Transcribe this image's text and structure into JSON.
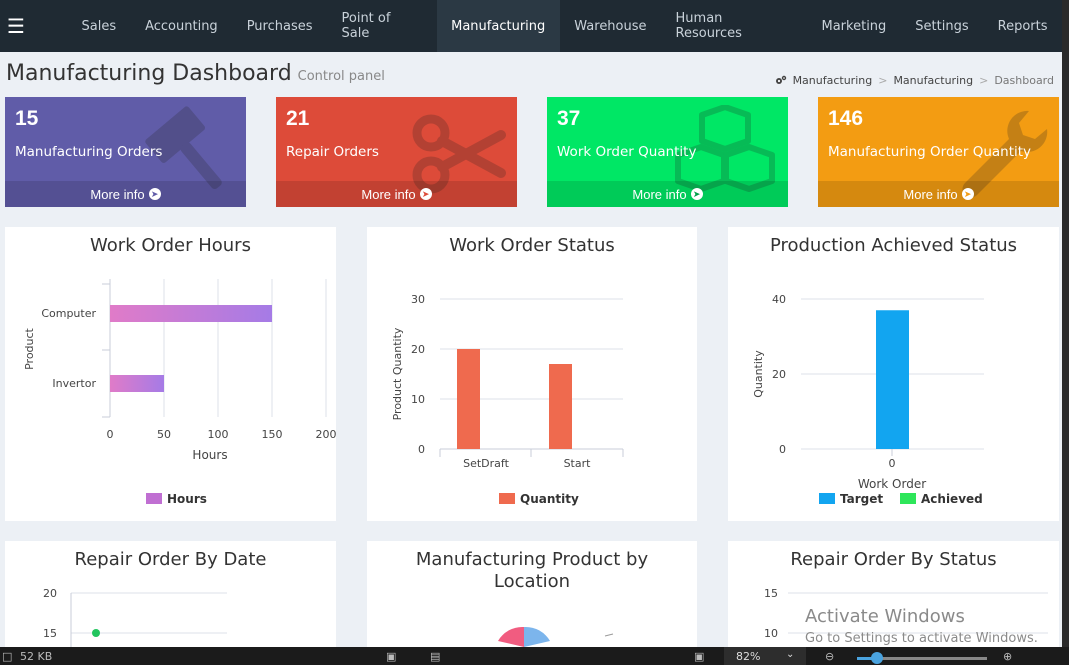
{
  "nav": {
    "menu_icon": "hamburger-icon",
    "items": [
      "Sales",
      "Accounting",
      "Purchases",
      "Point of Sale",
      "Manufacturing",
      "Warehouse",
      "Human Resources",
      "Marketing",
      "Settings",
      "Reports"
    ],
    "active": "Manufacturing"
  },
  "header": {
    "title": "Manufacturing Dashboard",
    "subtitle": "Control panel",
    "breadcrumb": [
      "Manufacturing",
      "Manufacturing",
      "Dashboard"
    ],
    "breadcrumb_icon": "gears-icon"
  },
  "info_boxes": [
    {
      "value": "15",
      "label": "Manufacturing Orders",
      "link": "More info",
      "color": "#605ca8",
      "icon": "gavel-icon"
    },
    {
      "value": "21",
      "label": "Repair Orders",
      "link": "More info",
      "color": "#dd4b39",
      "icon": "scissors-icon"
    },
    {
      "value": "37",
      "label": "Work Order Quantity",
      "link": "More info",
      "color": "#00e765",
      "icon": "cubes-icon"
    },
    {
      "value": "146",
      "label": "Manufacturing Order Quantity",
      "link": "More info",
      "color": "#f39c12",
      "icon": "wrench-icon"
    }
  ],
  "panels": {
    "work_order_hours": {
      "title": "Work Order Hours"
    },
    "work_order_status": {
      "title": "Work Order Status"
    },
    "production_status": {
      "title": "Production Achieved Status"
    },
    "repair_by_date": {
      "title": "Repair Order By Date"
    },
    "mfg_by_location": {
      "title_line1": "Manufacturing Product by",
      "title_line2": "Location"
    },
    "repair_by_status": {
      "title": "Repair Order By Status"
    }
  },
  "chart_data": [
    {
      "type": "bar",
      "orientation": "horizontal",
      "title": "Work Order Hours",
      "categories": [
        "Computer",
        "Invertor"
      ],
      "series": [
        {
          "name": "Hours",
          "values": [
            150,
            50
          ]
        }
      ],
      "xlabel": "Hours",
      "ylabel": "Product",
      "xlim": [
        0,
        200
      ],
      "xticks": [
        "0",
        "50",
        "100",
        "150",
        "200"
      ],
      "color": "#c06fd2"
    },
    {
      "type": "bar",
      "title": "Work Order Status",
      "categories": [
        "SetDraft",
        "Start"
      ],
      "series": [
        {
          "name": "Quantity",
          "values": [
            20,
            17
          ]
        }
      ],
      "ylabel": "Product Quantity",
      "ylim": [
        0,
        30
      ],
      "yticks": [
        "0",
        "10",
        "20",
        "30"
      ],
      "color": "#ef6a4e"
    },
    {
      "type": "bar",
      "title": "Production Achieved Status",
      "categories": [
        "0"
      ],
      "series": [
        {
          "name": "Target",
          "values": [
            37
          ]
        },
        {
          "name": "Achieved",
          "values": [
            0
          ]
        }
      ],
      "xlabel": "Work Order",
      "ylabel": "Quantity",
      "ylim": [
        0,
        40
      ],
      "yticks": [
        "0",
        "20",
        "40"
      ],
      "colors": [
        "#12a5f0",
        "#2ee65a"
      ]
    },
    {
      "type": "line",
      "title": "Repair Order By Date",
      "yticks": [
        "20",
        "15"
      ]
    },
    {
      "type": "pie",
      "title": "Manufacturing Product by Location"
    },
    {
      "type": "bar",
      "title": "Repair Order By Status",
      "yticks": [
        "15",
        "10"
      ]
    }
  ],
  "taskbar": {
    "file_size": "52 KB",
    "zoom": "82%"
  },
  "watermark": {
    "line1": "Activate Windows",
    "line2": "Go to Settings to activate Windows."
  }
}
